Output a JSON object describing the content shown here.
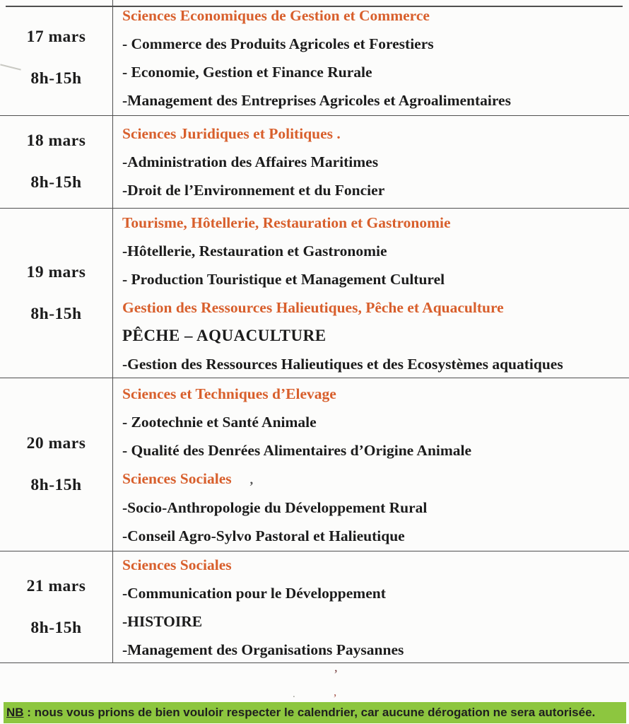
{
  "document": {
    "table": {
      "rows": [
        {
          "date": "17 mars",
          "time": "8h-15h",
          "lines": [
            {
              "style": "heading",
              "text": "Sciences Economiques de Gestion et Commerce"
            },
            {
              "style": "item",
              "text": "- Commerce des Produits Agricoles et Forestiers"
            },
            {
              "style": "item",
              "text": "- Economie, Gestion et Finance Rurale"
            },
            {
              "style": "item",
              "text": "-Management des Entreprises Agricoles et Agroalimentaires"
            }
          ]
        },
        {
          "date": "18 mars",
          "time": "8h-15h",
          "lines": [
            {
              "style": "heading",
              "text": "Sciences Juridiques et Politiques ."
            },
            {
              "style": "item",
              "text": "-Administration des Affaires Maritimes"
            },
            {
              "style": "item",
              "text": "-Droit de l’Environnement et du Foncier"
            }
          ]
        },
        {
          "date": "19 mars",
          "time": "8h-15h",
          "lines": [
            {
              "style": "heading",
              "text": "Tourisme, Hôtellerie, Restauration et Gastronomie"
            },
            {
              "style": "item",
              "text": "-Hôtellerie, Restauration et Gastronomie"
            },
            {
              "style": "item",
              "text": "- Production Touristique et Management Culturel"
            },
            {
              "style": "heading",
              "text": "Gestion des Ressources Halieutiques, Pêche et Aquaculture"
            },
            {
              "style": "caps",
              "text": "PÊCHE – AQUACULTURE"
            },
            {
              "style": "item",
              "text": "-Gestion des Ressources Halieutiques et des Ecosystèmes aquatiques"
            }
          ]
        },
        {
          "date": "20 mars",
          "time": "8h-15h",
          "lines": [
            {
              "style": "heading",
              "text": "Sciences et Techniques d’Elevage"
            },
            {
              "style": "item",
              "text": "- Zootechnie et Santé Animale"
            },
            {
              "style": "item",
              "text": "- Qualité des Denrées Alimentaires d’Origine Animale"
            },
            {
              "style": "heading",
              "text": "Sciences Sociales"
            },
            {
              "style": "item",
              "text": "-Socio-Anthropologie du Développement Rural"
            },
            {
              "style": "item",
              "text": "-Conseil Agro-Sylvo Pastoral et Halieutique"
            }
          ]
        },
        {
          "date": "21 mars",
          "time": "8h-15h",
          "lines": [
            {
              "style": "heading",
              "text": "Sciences Sociales"
            },
            {
              "style": "item",
              "text": "-Communication pour le Développement"
            },
            {
              "style": "item",
              "text": "-HISTOIRE"
            },
            {
              "style": "item",
              "text": "-Management des Organisations Paysannes"
            }
          ]
        }
      ]
    },
    "note": {
      "label": "NB",
      "text": " : nous vous prions de bien vouloir respecter le calendrier, car aucune dérogation ne sera autorisée."
    },
    "artifacts": {
      "heading_comma": ",",
      "mark1": "’",
      "mark2": ",",
      "mark3": "."
    },
    "colors": {
      "heading_orange": "#d85f2c",
      "text_black": "#1c1c1c",
      "highlight_green": "#8dc63f",
      "border_gray": "#4f4f4f",
      "background": "#fcfcfb"
    }
  }
}
